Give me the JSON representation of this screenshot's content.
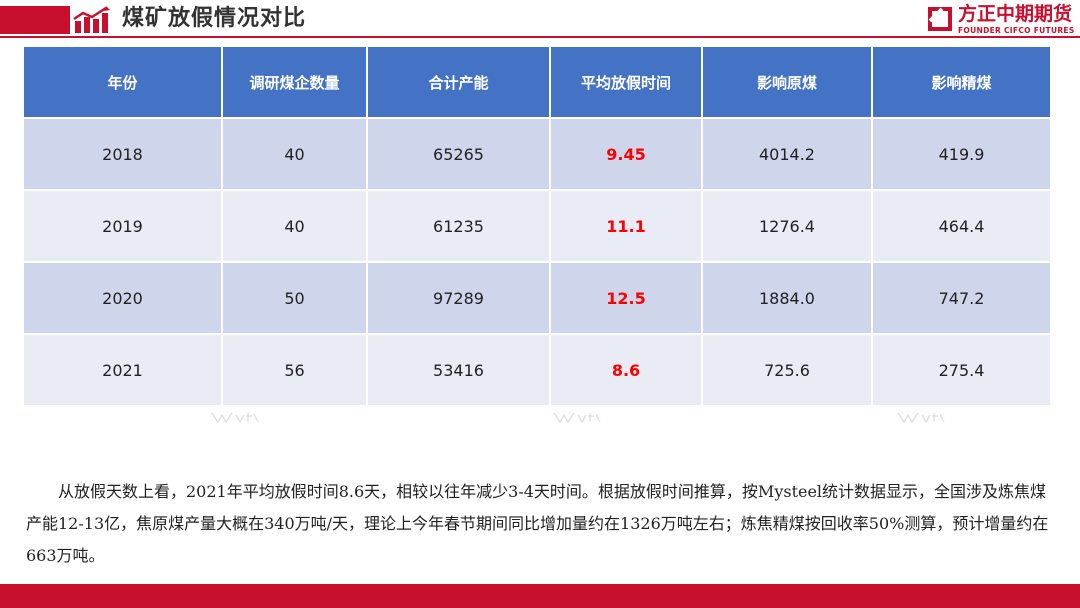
{
  "header": {
    "title": "煤矿放假情况对比",
    "brand": {
      "name": "方正中期期货",
      "subtitle": "FOUNDER CIFCO FUTURES"
    }
  },
  "table": {
    "columns": [
      "年份",
      "调研煤企数量",
      "合计产能",
      "平均放假时间",
      "影响原煤",
      "影响精煤"
    ],
    "rows": [
      {
        "year": "2018",
        "companies": "40",
        "capacity": "65265",
        "avg_holiday": "9.45",
        "raw_coal": "4014.2",
        "clean_coal": "419.9"
      },
      {
        "year": "2019",
        "companies": "40",
        "capacity": "61235",
        "avg_holiday": "11.1",
        "raw_coal": "1276.4",
        "clean_coal": "464.4"
      },
      {
        "year": "2020",
        "companies": "50",
        "capacity": "97289",
        "avg_holiday": "12.5",
        "raw_coal": "1884.0",
        "clean_coal": "747.2"
      },
      {
        "year": "2021",
        "companies": "56",
        "capacity": "53416",
        "avg_holiday": "8.6",
        "raw_coal": "725.6",
        "clean_coal": "275.4"
      }
    ],
    "highlight_color": "#ff0000",
    "header_color": "#4472c4"
  },
  "body_text": "从放假天数上看，2021年平均放假时间8.6天，相较以往年减少3-4天时间。根据放假时间推算，按Mysteel统计数据显示，全国涉及炼焦煤产能12-13亿，焦原煤产量大概在340万吨/天，理论上今年春节期间同比增加量约在1326万吨左右；炼焦精煤按回收率50%测算，预计增量约在663万吨。",
  "colors": {
    "brand_red": "#c8102e"
  }
}
